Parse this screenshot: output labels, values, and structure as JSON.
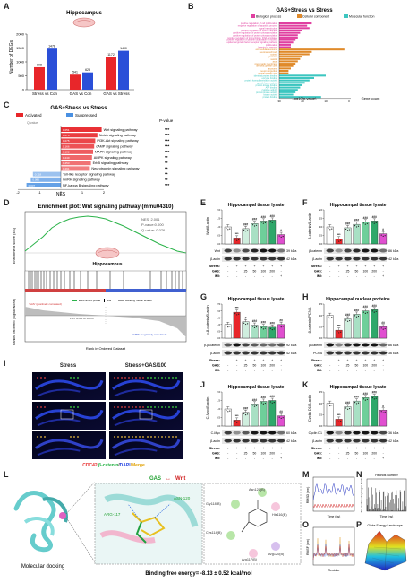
{
  "panel_letters": [
    "A",
    "B",
    "C",
    "D",
    "E",
    "F",
    "G",
    "H",
    "I",
    "J",
    "K",
    "L",
    "M",
    "N",
    "O",
    "P"
  ],
  "panelA": {
    "title": "Hippocampus",
    "ylabel": "Number of DEGs",
    "chart_data": {
      "type": "bar",
      "categories": [
        "Stress vs Con",
        "GAS vs Con",
        "GAS vs Stress"
      ],
      "series": [
        {
          "name": "down",
          "color": "#e8262a",
          "values": [
            808,
            541,
            1172
          ]
        },
        {
          "name": "up",
          "color": "#2a4fd8",
          "values": [
            1478,
            623,
            1400
          ]
        }
      ],
      "ylim": [
        0,
        2000
      ],
      "yticks": [
        "0",
        "500",
        "1000",
        "1500",
        "2000"
      ]
    }
  },
  "panelB": {
    "title": "GAS+Stress vs Stress",
    "legend": [
      "Biological process",
      "Cellular component",
      "Molecular function"
    ],
    "xlabel": "-log10(p-value)",
    "xlabel2": "Gene count",
    "colors": {
      "bp": "#e040a0",
      "cc": "#e08a2a",
      "mf": "#3cc6c0"
    },
    "bp_terms": [
      "positive regulation of cell proliferation",
      "negative regulation of apoptotic process",
      "signal transduction",
      "positive regulation of MAPK cascade",
      "positive regulation of protein phosphorylation",
      "positive regulation of protein phosphorylation",
      "positive regulation of transcription, DNA-templated",
      "positive regulation of protein localization to nucleus",
      "epidermal growth factor receptor signaling pathway",
      "proliferation",
      "learning or memory"
    ],
    "cc_terms": [
      "extracellular exosome",
      "neuronal cell body",
      "cytosol",
      "lysosome",
      "vesicle",
      "axon",
      "presynaptic membrane",
      "dendritic growth cone",
      "axonome",
      "neuron projection",
      "axonal growth cone"
    ],
    "mf_terms": [
      "identical protein binding",
      "enzyme binding",
      "protein homodimerization activity",
      "growth factor activity",
      "protein kinase binding",
      "ATP binding",
      "cytokine activity",
      "protein kinase activity",
      "kinase activity",
      "protein binding"
    ],
    "chart_data": {
      "type": "bar",
      "bp_values": [
        14,
        12,
        13,
        10,
        9,
        8,
        8,
        7,
        6,
        5,
        5
      ],
      "cc_values": [
        28,
        14,
        13,
        10,
        9,
        8,
        7,
        6,
        5,
        4,
        4
      ],
      "mf_values": [
        20,
        15,
        13,
        11,
        10,
        9,
        8,
        7,
        6,
        18
      ],
      "xticks": [
        "30",
        "20",
        "10",
        "0"
      ]
    }
  },
  "panelC": {
    "title": "GAS+Stress vs Stress",
    "legend_up": "Activated",
    "legend_down": "Suppressed",
    "legend_q": "Q-value",
    "xlabel": "NES",
    "pvalue_label": "P-value",
    "chart_data": {
      "type": "bar",
      "pathways": [
        {
          "name": "Wnt signaling pathway",
          "nes": 1.9,
          "q": "0.051",
          "sig": "***"
        },
        {
          "name": "Notch signaling pathway",
          "nes": 1.7,
          "q": "0.074",
          "sig": "***"
        },
        {
          "name": "PI3K-Akt signaling pathway",
          "nes": 1.6,
          "q": "0.075",
          "sig": "***"
        },
        {
          "name": "cAMP signaling pathway",
          "nes": 1.55,
          "q": "0.166",
          "sig": "***"
        },
        {
          "name": "MAPK signaling pathway",
          "nes": 1.5,
          "q": "0.182",
          "sig": "***"
        },
        {
          "name": "AMPK signaling pathway",
          "nes": 1.45,
          "q": "0.240",
          "sig": "**"
        },
        {
          "name": "ErbB signaling pathway",
          "nes": 1.4,
          "q": "0.253",
          "sig": "**"
        },
        {
          "name": "Neurotrophin signaling pathway",
          "nes": 1.35,
          "q": "0.291",
          "sig": "**"
        },
        {
          "name": "Toll-like receptor signaling pathway",
          "nes": -1.3,
          "q": "0.118",
          "sig": "**"
        },
        {
          "name": "GnRH signaling pathway",
          "nes": -1.4,
          "q": "0.085",
          "sig": "**"
        },
        {
          "name": "NF-kappa B signaling pathway",
          "nes": -1.6,
          "q": "0.007",
          "sig": "***"
        }
      ],
      "xticks": [
        "-2",
        "-1",
        "0",
        "1",
        "2"
      ]
    }
  },
  "panelD": {
    "title": "Enrichment plot: Wnt signaling pathway (mmu04310)",
    "ylabel_top": "Enrichment score (ES)",
    "ylabel_bottom": "Ranked list metric (Signal2Noise)",
    "xlabel": "Rank in Ordered Dataset",
    "stats": [
      "NES: 2.001",
      "P-value:0.000",
      "Q-value: 0.076"
    ],
    "tissue_label": "Hippocampus",
    "legend": [
      "Enrichment profile",
      "Hits",
      "Ranking metric scores"
    ],
    "pos_label": "'GAS' (positively correlated)",
    "zero_label": "Zero score at 11068",
    "neg_label": "'CMP' (negatively correlated)"
  },
  "panelI": {
    "col1": "Stress",
    "col2": "Stress+GAS/100",
    "caption_parts": [
      {
        "text": "CDC42",
        "color": "#e83030"
      },
      {
        "text": "/",
        "color": "#222222"
      },
      {
        "text": "β-catenin",
        "color": "#20b040"
      },
      {
        "text": "/",
        "color": "#222222"
      },
      {
        "text": "DAPI",
        "color": "#2040e0"
      },
      {
        "text": "/Merge",
        "color": "#e0a000"
      }
    ]
  },
  "western_panels": [
    {
      "id": "E",
      "title": "Hippocampal tissue lysate",
      "ylabel": "Wnt/β-actin",
      "blots": [
        {
          "name": "Wnt",
          "kda": "39 kDa"
        },
        {
          "name": "β-actin",
          "kda": "42 kDa"
        }
      ],
      "chart_data": {
        "type": "bar",
        "values": [
          1.0,
          0.35,
          0.9,
          1.2,
          1.35,
          1.4,
          0.55
        ],
        "ylim": [
          0,
          2.0
        ],
        "yticks": [
          "0.0",
          "0.5",
          "1.0",
          "1.5",
          "2.0"
        ],
        "sig": [
          "",
          "***",
          "###",
          "###",
          "###",
          "###",
          "#"
        ]
      }
    },
    {
      "id": "F",
      "title": "Hippocampal tissue lysate",
      "ylabel": "β-catenin/β-actin",
      "blots": [
        {
          "name": "β-catenin",
          "kda": "86 kDa"
        },
        {
          "name": "β-actin",
          "kda": "42 kDa"
        }
      ],
      "chart_data": {
        "type": "bar",
        "values": [
          1.0,
          0.3,
          0.95,
          1.15,
          1.3,
          1.35,
          0.6
        ],
        "ylim": [
          0,
          2.0
        ],
        "yticks": [
          "0.0",
          "0.5",
          "1.0",
          "1.5",
          "2.0"
        ],
        "sig": [
          "",
          "***",
          "###",
          "###",
          "###",
          "###",
          "#"
        ]
      }
    },
    {
      "id": "G",
      "title": "Hippocampal tissue lysate",
      "ylabel": "p-β-catenin/β-actin",
      "blots": [
        {
          "name": "p-β-catenin",
          "kda": "92 kDa"
        },
        {
          "name": "β-actin",
          "kda": "42 kDa"
        }
      ],
      "chart_data": {
        "type": "bar",
        "values": [
          1.0,
          1.9,
          1.2,
          0.95,
          0.85,
          0.8,
          1.0
        ],
        "ylim": [
          0,
          2.5
        ],
        "yticks": [
          "0.0",
          "0.5",
          "1.0",
          "1.5",
          "2.0",
          "2.5"
        ],
        "sig": [
          "",
          "***",
          "#",
          "###",
          "###",
          "###",
          "##"
        ]
      }
    },
    {
      "id": "H",
      "title": "Hippocampal nuclear proteins",
      "ylabel": "β-catenin/PCNA",
      "blots": [
        {
          "name": "β-catenin",
          "kda": "86 kDa"
        },
        {
          "name": "PCNA",
          "kda": "36 kDa"
        }
      ],
      "chart_data": {
        "type": "bar",
        "values": [
          1.0,
          0.35,
          0.85,
          1.05,
          1.2,
          1.25,
          0.5
        ],
        "ylim": [
          0,
          1.5
        ],
        "yticks": [
          "0.0",
          "0.5",
          "1.0",
          "1.5"
        ],
        "sig": [
          "",
          "***",
          "###",
          "###",
          "###",
          "###",
          "##"
        ]
      }
    },
    {
      "id": "J",
      "title": "Hippocampal tissue lysate",
      "ylabel": "C-Myc/β-actin",
      "blots": [
        {
          "name": "C-Myc",
          "kda": "60 kDa"
        },
        {
          "name": "β-actin",
          "kda": "42 kDa"
        }
      ],
      "chart_data": {
        "type": "bar",
        "values": [
          1.0,
          0.35,
          0.8,
          1.3,
          1.45,
          1.5,
          0.6
        ],
        "ylim": [
          0,
          2.0
        ],
        "yticks": [
          "0.0",
          "0.5",
          "1.0",
          "1.5",
          "2.0"
        ],
        "sig": [
          "",
          "***",
          "###",
          "###",
          "###",
          "###",
          "##"
        ]
      }
    },
    {
      "id": "K",
      "title": "Hippocampal tissue lysate",
      "ylabel": "Cyclin D1/β-actin",
      "blots": [
        {
          "name": "Cyclin D1",
          "kda": "36 kDa"
        },
        {
          "name": "β-actin",
          "kda": "42 kDa"
        }
      ],
      "chart_data": {
        "type": "bar",
        "values": [
          1.0,
          0.3,
          0.85,
          1.1,
          1.25,
          1.3,
          0.7
        ],
        "ylim": [
          0,
          1.5
        ],
        "yticks": [
          "0.0",
          "0.5",
          "1.0",
          "1.5"
        ],
        "sig": [
          "",
          "***",
          "###",
          "###",
          "###",
          "###",
          "#"
        ]
      }
    }
  ],
  "treatment_table": {
    "rows": [
      {
        "label": "Stress:",
        "values": [
          "-",
          "+",
          "+",
          "+",
          "+",
          "+",
          "+"
        ]
      },
      {
        "label": "GAS:",
        "values": [
          "-",
          "-",
          "25",
          "50",
          "100",
          "200",
          "-"
        ]
      },
      {
        "label": "IMI:",
        "values": [
          "-",
          "-",
          "-",
          "-",
          "-",
          "-",
          "+"
        ]
      }
    ]
  },
  "bar_colors": [
    "#ffffff",
    "#e8262a",
    "#cfeede",
    "#a8e0c4",
    "#6fcf9a",
    "#2ea86a",
    "#e04fd0"
  ],
  "panelL": {
    "header_left": "GAS",
    "header_arrow": "↔",
    "header_right": "Wnt",
    "caption_left": "Molecular docking",
    "caption_right": "Binding free energy= -8.13 ± 0.52 kcal/mol",
    "residues": [
      "Asn120(B)",
      "Gly118(B)",
      "His116(B)",
      "Cys114(B)",
      "Arg117(B)",
      "Arg120(B)"
    ],
    "labels_3d": [
      "ASN-120",
      "ARG-117"
    ]
  },
  "panelM": {
    "ylabel": "RMSD (nm)",
    "xlabel": "Time (ns)"
  },
  "panelN": {
    "title": "Hbonds Number",
    "ylabel": "The number of hydrogen bonds",
    "xlabel": "Time (ns)"
  },
  "panelO": {
    "ylabel": "RMSF (nm)",
    "xlabel": "Residue"
  },
  "panelP": {
    "title": "Gibbs Energy Landscape"
  }
}
